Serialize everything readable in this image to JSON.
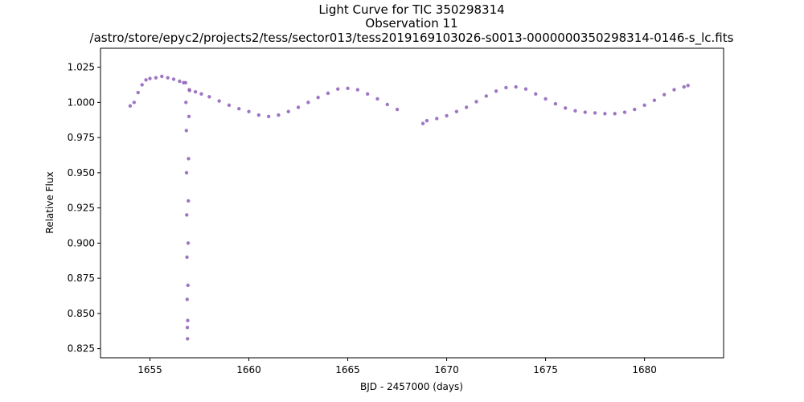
{
  "chart_data": {
    "type": "scatter",
    "title_lines": [
      "Light Curve for TIC 350298314",
      "Observation 11",
      "/astro/store/epyc2/projects2/tess/sector013/tess2019169103026-s0013-0000000350298314-0146-s_lc.fits"
    ],
    "xlabel": "BJD - 2457000 (days)",
    "ylabel": "Relative Flux",
    "xlim": [
      1652.5,
      1684.0
    ],
    "ylim": [
      0.8185,
      1.0385
    ],
    "xticks": [
      1655,
      1660,
      1665,
      1670,
      1675,
      1680
    ],
    "yticks": [
      0.825,
      0.85,
      0.875,
      0.9,
      0.925,
      0.95,
      0.975,
      1.0,
      1.025
    ],
    "ytick_labels": [
      "0.825",
      "0.850",
      "0.875",
      "0.900",
      "0.925",
      "0.950",
      "0.975",
      "1.000",
      "1.025"
    ],
    "grid": false,
    "marker_color": "#9467bd",
    "series": [
      {
        "segments": [
          {
            "points": [
              [
                1654.0,
                0.9975
              ],
              [
                1654.2,
                1.0
              ],
              [
                1654.4,
                1.007
              ],
              [
                1654.6,
                1.0125
              ],
              [
                1654.8,
                1.016
              ],
              [
                1655.0,
                1.017
              ],
              [
                1655.3,
                1.0175
              ],
              [
                1655.6,
                1.0185
              ],
              [
                1655.9,
                1.0175
              ],
              [
                1656.2,
                1.0165
              ],
              [
                1656.5,
                1.015
              ],
              [
                1656.7,
                1.014
              ]
            ]
          },
          {
            "points": [
              [
                1657.0,
                1.0085
              ],
              [
                1657.3,
                1.0075
              ],
              [
                1657.6,
                1.006
              ],
              [
                1658.0,
                1.004
              ],
              [
                1658.5,
                1.001
              ],
              [
                1659.0,
                0.998
              ],
              [
                1659.5,
                0.9955
              ],
              [
                1660.0,
                0.9935
              ],
              [
                1660.5,
                0.991
              ],
              [
                1661.0,
                0.99
              ],
              [
                1661.5,
                0.991
              ],
              [
                1662.0,
                0.9935
              ],
              [
                1662.5,
                0.9965
              ],
              [
                1663.0,
                1.0
              ],
              [
                1663.5,
                1.0035
              ],
              [
                1664.0,
                1.0065
              ],
              [
                1664.5,
                1.0095
              ],
              [
                1665.0,
                1.01
              ],
              [
                1665.5,
                1.009
              ],
              [
                1666.0,
                1.006
              ],
              [
                1666.5,
                1.0025
              ],
              [
                1667.0,
                0.9985
              ],
              [
                1667.5,
                0.995
              ]
            ]
          },
          {
            "points": [
              [
                1668.8,
                0.985
              ],
              [
                1669.0,
                0.987
              ],
              [
                1669.5,
                0.9885
              ],
              [
                1670.0,
                0.9905
              ],
              [
                1670.5,
                0.9935
              ],
              [
                1671.0,
                0.9965
              ],
              [
                1671.5,
                1.0005
              ],
              [
                1672.0,
                1.0045
              ],
              [
                1672.5,
                1.008
              ],
              [
                1673.0,
                1.0105
              ],
              [
                1673.5,
                1.011
              ],
              [
                1674.0,
                1.0095
              ],
              [
                1674.5,
                1.006
              ],
              [
                1675.0,
                1.0025
              ],
              [
                1675.5,
                0.999
              ],
              [
                1676.0,
                0.996
              ],
              [
                1676.5,
                0.994
              ],
              [
                1677.0,
                0.993
              ],
              [
                1677.5,
                0.9925
              ],
              [
                1678.0,
                0.992
              ],
              [
                1678.5,
                0.992
              ],
              [
                1679.0,
                0.993
              ],
              [
                1679.5,
                0.995
              ],
              [
                1680.0,
                0.998
              ],
              [
                1680.5,
                1.0015
              ],
              [
                1681.0,
                1.0055
              ],
              [
                1681.5,
                1.009
              ],
              [
                1682.0,
                1.011
              ],
              [
                1682.2,
                1.012
              ]
            ]
          },
          {
            "points": [
              [
                1656.8,
                1.014
              ],
              [
                1656.82,
                1.0
              ],
              [
                1656.84,
                0.98
              ],
              [
                1656.85,
                0.95
              ],
              [
                1656.86,
                0.92
              ],
              [
                1656.87,
                0.89
              ],
              [
                1656.88,
                0.86
              ],
              [
                1656.89,
                0.84
              ],
              [
                1656.9,
                0.832
              ],
              [
                1656.91,
                0.845
              ],
              [
                1656.92,
                0.87
              ],
              [
                1656.93,
                0.9
              ],
              [
                1656.94,
                0.93
              ],
              [
                1656.95,
                0.96
              ],
              [
                1656.97,
                0.99
              ],
              [
                1656.99,
                1.009
              ]
            ]
          }
        ]
      }
    ]
  }
}
